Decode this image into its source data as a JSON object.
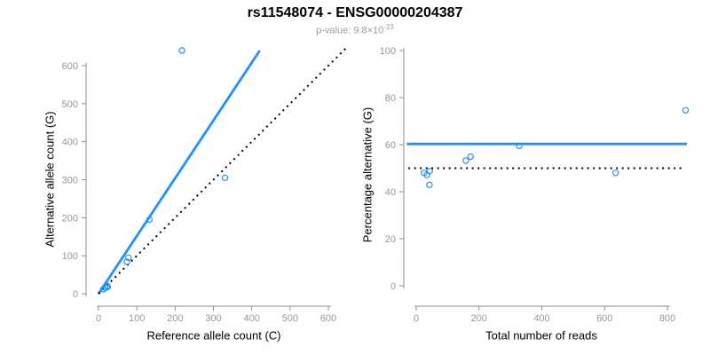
{
  "header": {
    "title": "rs11548074 - ENSG00000204387",
    "pvalue_base": "p-value: 9.8×10",
    "pvalue_exponent": "-23"
  },
  "colors": {
    "accent_blue": "#1E90FF",
    "line_black": "#000000",
    "axis_gray": "#8c8c8c",
    "tick_label_gray": "#979797",
    "subtitle_gray": "#9b9b9b"
  },
  "chart_data": [
    {
      "type": "scatter",
      "panel": "allele-counts",
      "xlabel": "Reference allele count (C)",
      "ylabel": "Alternative allele count (G)",
      "xlim": [
        0,
        600
      ],
      "ylim": [
        0,
        600
      ],
      "xticks": [
        0,
        100,
        200,
        300,
        400,
        500,
        600
      ],
      "yticks": [
        0,
        100,
        200,
        300,
        400,
        500,
        600
      ],
      "grid": false,
      "points": [
        [
          13,
          12
        ],
        [
          18,
          16
        ],
        [
          24,
          18
        ],
        [
          22,
          21
        ],
        [
          74,
          84
        ],
        [
          78,
          95
        ],
        [
          133,
          195
        ],
        [
          330,
          305
        ],
        [
          218,
          640
        ]
      ],
      "fit_line": {
        "slope": 1.52,
        "intercept": 0
      },
      "identity_line": {
        "slope": 1,
        "intercept": 0
      }
    },
    {
      "type": "scatter",
      "panel": "percentage-vs-reads",
      "xlabel": "Total number of reads",
      "ylabel": "Percentage alternative (G)",
      "xlim": [
        0,
        800
      ],
      "ylim": [
        0,
        100
      ],
      "xticks": [
        0,
        200,
        400,
        600,
        800
      ],
      "yticks": [
        0,
        20,
        40,
        60,
        80,
        100
      ],
      "grid": false,
      "points": [
        [
          25,
          48.0
        ],
        [
          34,
          47.1
        ],
        [
          42,
          42.9
        ],
        [
          43,
          48.8
        ],
        [
          158,
          53.2
        ],
        [
          173,
          54.9
        ],
        [
          328,
          59.5
        ],
        [
          635,
          48.0
        ],
        [
          858,
          74.6
        ]
      ],
      "fit_value": 60.3,
      "reference_value": 50
    }
  ]
}
